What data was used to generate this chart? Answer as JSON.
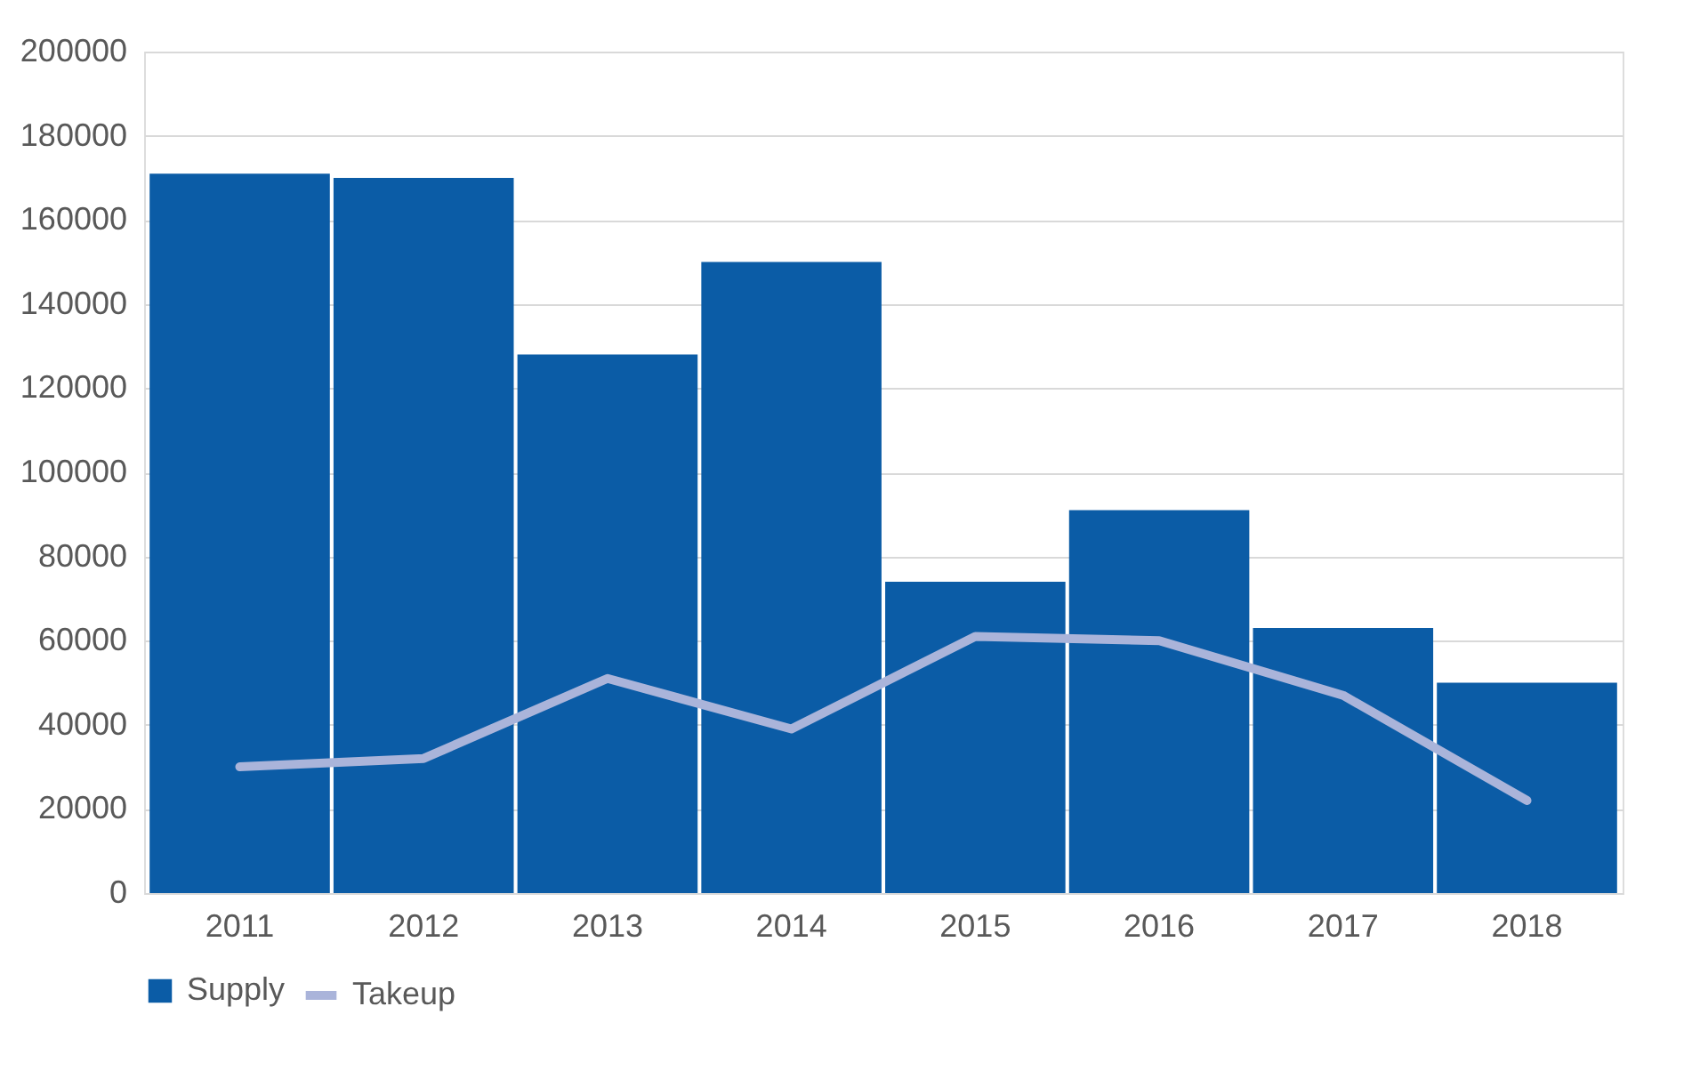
{
  "chart_data": {
    "type": "bar",
    "categories": [
      "2011",
      "2012",
      "2013",
      "2014",
      "2015",
      "2016",
      "2017",
      "2018"
    ],
    "series": [
      {
        "name": "Supply",
        "color": "#0b5ca6",
        "values": [
          171000,
          170000,
          128000,
          150000,
          74000,
          91000,
          63000,
          50000
        ]
      },
      {
        "name": "Takeup",
        "type": "line",
        "color": "#aab4da",
        "values": [
          30000,
          32000,
          51000,
          39000,
          61000,
          60000,
          47000,
          22000
        ]
      }
    ],
    "ylim": [
      0,
      200000
    ],
    "yticks": [
      0,
      20000,
      40000,
      60000,
      80000,
      100000,
      120000,
      140000,
      160000,
      180000,
      200000
    ],
    "grid": "y",
    "legend": "bottom",
    "line_style": "solid",
    "marker": "none"
  }
}
